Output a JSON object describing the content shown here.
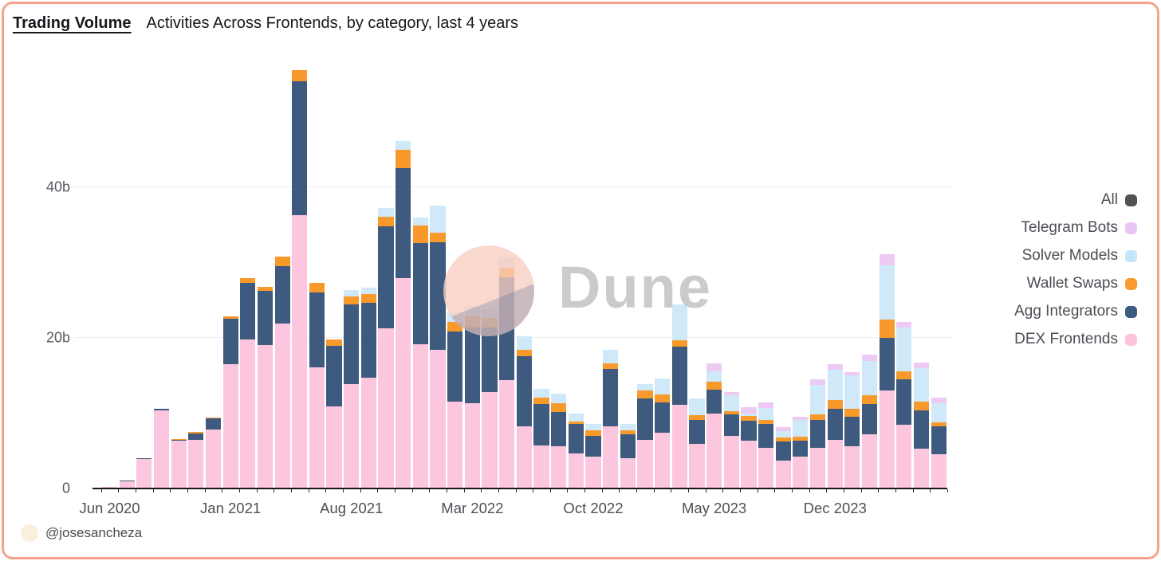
{
  "frame": {
    "border_color": "#f3a38d",
    "background": "#ffffff"
  },
  "header": {
    "title": "Trading Volume",
    "subtitle": "Activities Across Frontends, by category, last 4 years"
  },
  "watermark": {
    "brand": "Dune"
  },
  "attribution": {
    "handle": "@josesancheza",
    "avatar_color": "#faeedd"
  },
  "legend": {
    "position": "right",
    "items": [
      {
        "label": "All",
        "color": "#515156"
      },
      {
        "label": "Telegram Bots",
        "color": "#e9c6f5"
      },
      {
        "label": "Solver Models",
        "color": "#c3e6f9"
      },
      {
        "label": "Wallet Swaps",
        "color": "#fb9a31"
      },
      {
        "label": "Agg Integrators",
        "color": "#3e5a80"
      },
      {
        "label": "DEX Frontends",
        "color": "#fcc3dc"
      }
    ]
  },
  "chart_data": {
    "type": "bar",
    "stacked": true,
    "unit": "billions USD",
    "grid": "horizontal",
    "legend_position": "right",
    "ylim": [
      0,
      56
    ],
    "y_ticks": [
      {
        "label": "0",
        "value": 0
      },
      {
        "label": "20b",
        "value": 20
      },
      {
        "label": "40b",
        "value": 40
      }
    ],
    "x_tick_labels": [
      "Jun 2020",
      "Jan 2021",
      "Aug 2021",
      "Mar 2022",
      "Oct 2022",
      "May 2023",
      "Dec 2023"
    ],
    "x_tick_indices": [
      0,
      7,
      14,
      21,
      28,
      35,
      42
    ],
    "categories": [
      "Jun 2020",
      "Jul 2020",
      "Aug 2020",
      "Sep 2020",
      "Oct 2020",
      "Nov 2020",
      "Dec 2020",
      "Jan 2021",
      "Feb 2021",
      "Mar 2021",
      "Apr 2021",
      "May 2021",
      "Jun 2021",
      "Jul 2021",
      "Aug 2021",
      "Sep 2021",
      "Oct 2021",
      "Nov 2021",
      "Dec 2021",
      "Jan 2022",
      "Feb 2022",
      "Mar 2022",
      "Apr 2022",
      "May 2022",
      "Jun 2022",
      "Jul 2022",
      "Aug 2022",
      "Sep 2022",
      "Oct 2022",
      "Nov 2022",
      "Dec 2022",
      "Jan 2023",
      "Feb 2023",
      "Mar 2023",
      "Apr 2023",
      "May 2023",
      "Jun 2023",
      "Jul 2023",
      "Aug 2023",
      "Sep 2023",
      "Oct 2023",
      "Nov 2023",
      "Dec 2023",
      "Jan 2024",
      "Feb 2024",
      "Mar 2024",
      "Apr 2024",
      "May 2024",
      "Jun 2024"
    ],
    "series": [
      {
        "name": "DEX Frontends",
        "color": "#fcc7de",
        "values": [
          0.15,
          0.9,
          3.8,
          10.3,
          6.2,
          6.4,
          7.7,
          16.4,
          19.7,
          18.9,
          21.8,
          36.2,
          16.0,
          10.8,
          13.8,
          14.6,
          21.2,
          27.8,
          19.0,
          18.3,
          11.4,
          11.2,
          12.7,
          14.3,
          8.1,
          5.6,
          5.5,
          4.5,
          4.1,
          8.2,
          3.9,
          6.3,
          7.3,
          11.0,
          5.8,
          9.8,
          6.9,
          6.2,
          5.3,
          3.6,
          4.1,
          5.3,
          6.4,
          5.5,
          7.1,
          12.9,
          8.4,
          5.2,
          4.4
        ]
      },
      {
        "name": "Agg Integrators",
        "color": "#3e5a7e",
        "values": [
          0,
          0.05,
          0.1,
          0.2,
          0.2,
          0.8,
          1.5,
          6.0,
          7.5,
          7.2,
          7.6,
          17.8,
          9.9,
          8.0,
          10.5,
          10.0,
          13.5,
          14.6,
          13.5,
          14.3,
          9.3,
          10.1,
          8.6,
          13.6,
          9.4,
          5.5,
          4.6,
          4.0,
          2.8,
          7.6,
          3.2,
          5.6,
          4.0,
          7.7,
          3.2,
          3.2,
          2.8,
          2.7,
          3.2,
          2.5,
          2.1,
          3.7,
          4.1,
          3.9,
          4.0,
          7.0,
          6.0,
          5.1,
          3.7
        ]
      },
      {
        "name": "Wallet Swaps",
        "color": "#f8992c",
        "values": [
          0,
          0,
          0,
          0,
          0.1,
          0.2,
          0.1,
          0.4,
          0.6,
          0.6,
          1.3,
          1.5,
          1.3,
          0.9,
          1.1,
          1.1,
          1.3,
          2.5,
          2.3,
          1.3,
          1.3,
          1.5,
          1.2,
          1.3,
          0.8,
          0.9,
          1.1,
          0.3,
          0.7,
          0.7,
          0.5,
          1.0,
          1.1,
          0.9,
          0.6,
          1.1,
          0.5,
          0.65,
          0.5,
          0.55,
          0.55,
          0.7,
          1.1,
          1.1,
          1.2,
          2.4,
          1.1,
          1.1,
          0.55
        ]
      },
      {
        "name": "Solver Models",
        "color": "#cfe9f8",
        "values": [
          0,
          0,
          0,
          0,
          0,
          0,
          0,
          0,
          0,
          0,
          0,
          0,
          0,
          0,
          0.8,
          0.9,
          1.1,
          1.1,
          1.1,
          3.6,
          1.3,
          1.2,
          1.2,
          1.4,
          1.8,
          1.1,
          1.3,
          1.0,
          0.9,
          1.8,
          0.9,
          0.9,
          2.1,
          4.7,
          2.3,
          1.4,
          2.1,
          0.3,
          1.6,
          0.9,
          2.2,
          4.0,
          4.1,
          4.4,
          4.5,
          7.2,
          5.8,
          4.5,
          2.6
        ]
      },
      {
        "name": "Telegram Bots",
        "color": "#eccaf4",
        "values": [
          0,
          0,
          0,
          0,
          0,
          0,
          0,
          0,
          0,
          0,
          0,
          0,
          0,
          0,
          0,
          0,
          0,
          0,
          0,
          0,
          0,
          0,
          0,
          0,
          0,
          0,
          0,
          0,
          0,
          0,
          0,
          0,
          0,
          0,
          0,
          1.0,
          0.4,
          0.85,
          0.75,
          0.5,
          0.5,
          0.7,
          0.75,
          0.5,
          0.9,
          1.5,
          0.7,
          0.7,
          0.75
        ]
      }
    ]
  }
}
